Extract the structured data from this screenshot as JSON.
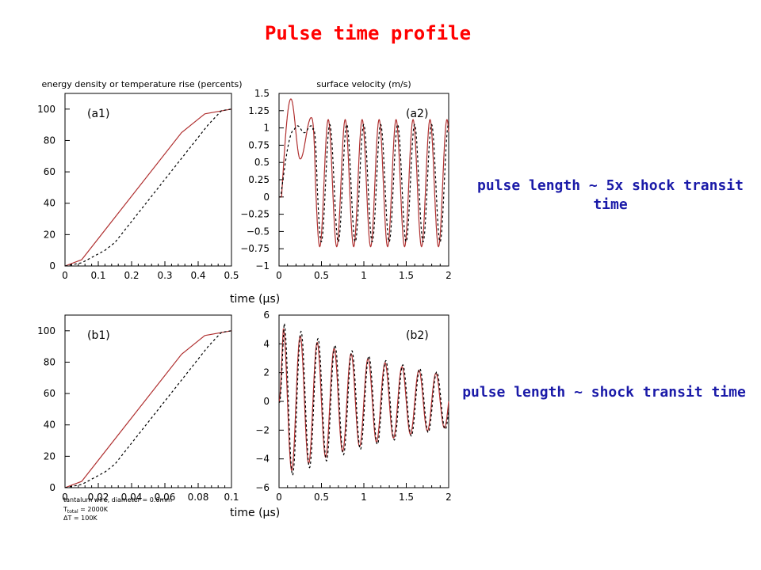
{
  "title": "Pulse time profile",
  "notes": {
    "top": "pulse length ~ 5x shock transit time",
    "bottom": "pulse length ~ shock transit time"
  },
  "xlabel": "time (μs)",
  "legend_text": {
    "line1": "tantalum wire, diameter = 0.6mm",
    "line2": "T",
    "line2_sub": "total",
    "line2_rest": " = 2000K",
    "line3": "ΔT =   100K"
  },
  "colors": {
    "solid": "#b03030",
    "dashed": "#000000",
    "title": "#ff0000",
    "note": "#1a1aa8"
  },
  "chart_data": [
    {
      "id": "a1",
      "type": "line",
      "title": "energy density or temperature rise (percents)",
      "panel_label": "(a1)",
      "xlim": [
        0,
        0.5
      ],
      "ylim": [
        0,
        110
      ],
      "xticks": [
        0,
        0.1,
        0.2,
        0.3,
        0.4,
        0.5
      ],
      "xtick_labels": [
        "0",
        "0.1",
        "0.2",
        "0.3",
        "0.4",
        "0.5"
      ],
      "yticks": [
        0,
        20,
        40,
        60,
        80,
        100
      ],
      "ytick_labels": [
        "0",
        "20",
        "40",
        "60",
        "80",
        "100"
      ],
      "series": [
        {
          "style": "solid",
          "points": [
            [
              0,
              0
            ],
            [
              0.05,
              4
            ],
            [
              0.35,
              85
            ],
            [
              0.42,
              97
            ],
            [
              0.5,
              100
            ]
          ]
        },
        {
          "style": "dashed",
          "points": [
            [
              0,
              0
            ],
            [
              0.05,
              2
            ],
            [
              0.12,
              10
            ],
            [
              0.15,
              15
            ],
            [
              0.43,
              90
            ],
            [
              0.47,
              99
            ],
            [
              0.5,
              100
            ]
          ]
        }
      ]
    },
    {
      "id": "a2",
      "type": "line",
      "title": "surface velocity (m/s)",
      "panel_label": "(a2)",
      "xlim": [
        0,
        2
      ],
      "ylim": [
        -1,
        1.5
      ],
      "xticks": [
        0,
        0.5,
        1,
        1.5,
        2
      ],
      "xtick_labels": [
        "0",
        "0.5",
        "1",
        "1.5",
        "2"
      ],
      "yticks": [
        -1,
        -0.75,
        -0.5,
        -0.25,
        0,
        0.25,
        0.5,
        0.75,
        1,
        1.25,
        1.5
      ],
      "ytick_labels": [
        "−1",
        "−0.75",
        "−0.5",
        "−0.25",
        "0",
        "0.25",
        "0.5",
        "0.75",
        "1",
        "1.25",
        "1.5"
      ],
      "series": [
        {
          "style": "solid",
          "generator": {
            "onset": 0.03,
            "rise_end": 0.14,
            "peak": 1.42,
            "dip_time": 0.25,
            "dip_value": 0.55,
            "second_peak_time": 0.38,
            "second_peak_value": 1.15,
            "osc_start": 0.38,
            "osc_center": 0.2,
            "osc_amplitude": 0.92,
            "osc_period": 0.2,
            "end_value": 0.0
          }
        },
        {
          "style": "dashed",
          "generator": {
            "onset": 0.02,
            "rise_end": 0.18,
            "peak": 0.98,
            "plateau_end": 0.4,
            "osc_start": 0.4,
            "osc_center": 0.2,
            "osc_amplitude": 0.85,
            "osc_period": 0.2,
            "phase_shift": 0.05,
            "end_value": -0.7
          }
        }
      ]
    },
    {
      "id": "b1",
      "type": "line",
      "panel_label": "(b1)",
      "xlim": [
        0,
        0.1
      ],
      "ylim": [
        0,
        110
      ],
      "xticks": [
        0,
        0.02,
        0.04,
        0.06,
        0.08,
        0.1
      ],
      "xtick_labels": [
        "0",
        "0.02",
        "0.04",
        "0.06",
        "0.08",
        "0.1"
      ],
      "yticks": [
        0,
        20,
        40,
        60,
        80,
        100
      ],
      "ytick_labels": [
        "0",
        "20",
        "40",
        "60",
        "80",
        "100"
      ],
      "series": [
        {
          "style": "solid",
          "points": [
            [
              0,
              0
            ],
            [
              0.01,
              4
            ],
            [
              0.07,
              85
            ],
            [
              0.084,
              97
            ],
            [
              0.1,
              100
            ]
          ]
        },
        {
          "style": "dashed",
          "points": [
            [
              0,
              0
            ],
            [
              0.01,
              2
            ],
            [
              0.024,
              10
            ],
            [
              0.03,
              15
            ],
            [
              0.086,
              90
            ],
            [
              0.094,
              99
            ],
            [
              0.1,
              100
            ]
          ]
        }
      ]
    },
    {
      "id": "b2",
      "type": "line",
      "panel_label": "(b2)",
      "xlim": [
        0,
        2
      ],
      "ylim": [
        -6,
        6
      ],
      "xticks": [
        0,
        0.5,
        1,
        1.5,
        2
      ],
      "xtick_labels": [
        "0",
        "0.5",
        "1",
        "1.5",
        "2"
      ],
      "yticks": [
        -6,
        -4,
        -2,
        0,
        2,
        4,
        6
      ],
      "ytick_labels": [
        "−6",
        "−4",
        "−2",
        "0",
        "2",
        "4",
        "6"
      ],
      "series": [
        {
          "style": "solid",
          "generator": {
            "damped": true,
            "start": 0.0,
            "amplitude0": 5.2,
            "amplitude_end": 1.8,
            "period": 0.2,
            "first_peak": 0.05
          }
        },
        {
          "style": "dashed",
          "generator": {
            "damped": true,
            "start": 0.0,
            "amplitude0": 5.6,
            "amplitude_end": 1.9,
            "period": 0.2,
            "first_peak": 0.06
          }
        }
      ]
    }
  ]
}
